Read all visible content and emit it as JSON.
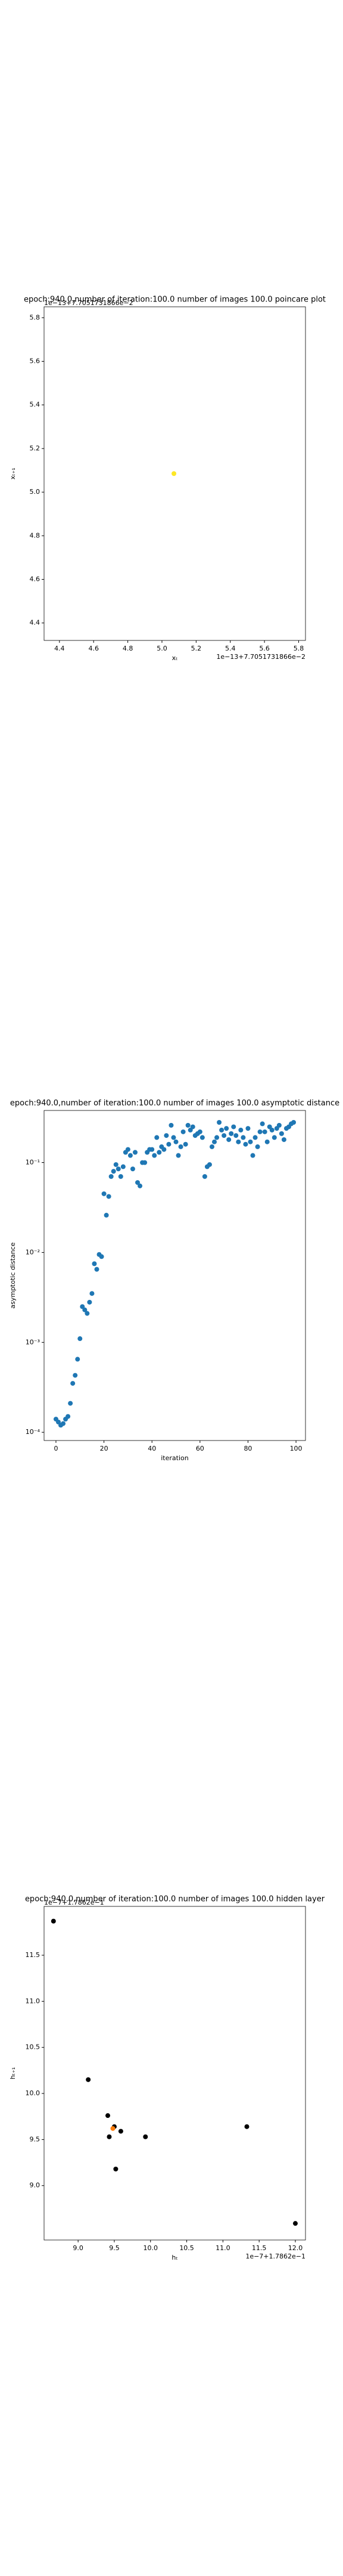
{
  "chart_data": [
    {
      "type": "scatter",
      "title": "epoch:940.0,number of iteration:100.0 number of images 100.0 poincare plot",
      "xlabel": "xₜ",
      "ylabel": "xₜ₊₁",
      "x_offset": "1e−13+7.7051731866e−2",
      "y_offset": "1e−13+7.7051731866e−2",
      "series": [
        {
          "color": "#fde725",
          "x": [
            5.07
          ],
          "values": [
            5.085
          ]
        }
      ],
      "xlim": [
        4.31,
        5.84
      ],
      "ylim": [
        4.32,
        5.85
      ],
      "xticks": [
        4.4,
        4.6,
        4.8,
        {
          "value": 5,
          "label": "5.0"
        },
        5.2,
        5.4,
        5.6,
        5.8
      ],
      "yticks": [
        4.4,
        4.6,
        4.8,
        {
          "value": 5,
          "label": "5.0"
        },
        5.2,
        5.4,
        5.6,
        5.8
      ],
      "log_y": false
    },
    {
      "type": "scatter",
      "title": "epoch:940.0,number of iteration:100.0  number of images 100.0 asymptotic distance",
      "xlabel": "iteration",
      "ylabel": "asymptotic distance",
      "series": [
        {
          "color": "#1f77b4",
          "x": [
            0,
            1,
            2,
            3,
            4,
            5,
            6,
            7,
            8,
            9,
            10,
            11,
            12,
            13,
            14,
            15,
            16,
            17,
            18,
            19,
            20,
            21,
            22,
            23,
            24,
            25,
            26,
            27,
            28,
            29,
            30,
            31,
            32,
            33,
            34,
            35,
            36,
            37,
            38,
            39,
            40,
            41,
            42,
            43,
            44,
            45,
            46,
            47,
            48,
            49,
            50,
            51,
            52,
            53,
            54,
            55,
            56,
            57,
            58,
            59,
            60,
            61,
            62,
            63,
            64,
            65,
            66,
            67,
            68,
            69,
            70,
            71,
            72,
            73,
            74,
            75,
            76,
            77,
            78,
            79,
            80,
            81,
            82,
            83,
            84,
            85,
            86,
            87,
            88,
            89,
            90,
            91,
            92,
            93,
            94,
            95,
            96,
            97,
            98,
            99
          ],
          "values": [
            0.00014,
            0.00013,
            0.00012,
            0.000125,
            0.00014,
            0.00015,
            0.00021,
            0.00035,
            0.00043,
            0.00065,
            0.0011,
            0.0025,
            0.0023,
            0.0021,
            0.0028,
            0.0035,
            0.0075,
            0.0065,
            0.0095,
            0.009,
            0.045,
            0.026,
            0.042,
            0.07,
            0.08,
            0.095,
            0.085,
            0.07,
            0.09,
            0.13,
            0.14,
            0.12,
            0.085,
            0.13,
            0.06,
            0.055,
            0.1,
            0.1,
            0.13,
            0.14,
            0.14,
            0.12,
            0.19,
            0.13,
            0.15,
            0.14,
            0.2,
            0.16,
            0.26,
            0.19,
            0.17,
            0.12,
            0.15,
            0.22,
            0.16,
            0.26,
            0.23,
            0.25,
            0.2,
            0.21,
            0.22,
            0.19,
            0.07,
            0.09,
            0.095,
            0.15,
            0.17,
            0.19,
            0.28,
            0.23,
            0.2,
            0.24,
            0.18,
            0.21,
            0.25,
            0.2,
            0.17,
            0.23,
            0.19,
            0.16,
            0.24,
            0.17,
            0.12,
            0.19,
            0.15,
            0.22,
            0.27,
            0.22,
            0.17,
            0.25,
            0.23,
            0.19,
            0.24,
            0.26,
            0.21,
            0.18,
            0.24,
            0.25,
            0.27,
            0.28
          ]
        }
      ],
      "xlim": [
        -4.95,
        103.95
      ],
      "ylim": [
        8.1e-05,
        0.38
      ],
      "xticks": [
        0,
        20,
        40,
        60,
        80,
        100
      ],
      "yticks": [
        {
          "value": 0.0001,
          "label": "10⁻⁴"
        },
        {
          "value": 0.001,
          "label": "10⁻³"
        },
        {
          "value": 0.01,
          "label": "10⁻²"
        },
        {
          "value": 0.1,
          "label": "10⁻¹"
        }
      ],
      "log_y": true
    },
    {
      "type": "scatter",
      "title": "epoch:940.0,number of iteration:100.0  number of images 100.0 hidden layer",
      "xlabel": "hₜ",
      "ylabel": "hₜ₊₁",
      "x_offset": "1e−7+1.7862e−1",
      "y_offset": "1e−7+1.7862e−1",
      "series": [
        {
          "color": "#000000",
          "x": [
            8.66,
            9.14,
            9.41,
            9.43,
            9.5,
            9.59,
            9.52,
            9.93,
            11.33,
            12.0
          ],
          "values": [
            11.87,
            10.15,
            9.76,
            9.53,
            9.64,
            9.59,
            9.18,
            9.53,
            9.64,
            8.59
          ]
        },
        {
          "color": "#ff7f0e",
          "x": [
            9.48
          ],
          "values": [
            9.62
          ]
        }
      ],
      "xlim": [
        8.53,
        12.14
      ],
      "ylim": [
        8.41,
        12.03
      ],
      "xticks": [
        {
          "value": 9,
          "label": "9.0"
        },
        9.5,
        {
          "value": 10,
          "label": "10.0"
        },
        10.5,
        {
          "value": 11,
          "label": "11.0"
        },
        11.5,
        {
          "value": 12,
          "label": "12.0"
        }
      ],
      "yticks": [
        {
          "value": 9,
          "label": "9.0"
        },
        9.5,
        {
          "value": 10,
          "label": "10.0"
        },
        10.5,
        {
          "value": 11,
          "label": "11.0"
        },
        11.5
      ],
      "log_y": false
    }
  ]
}
